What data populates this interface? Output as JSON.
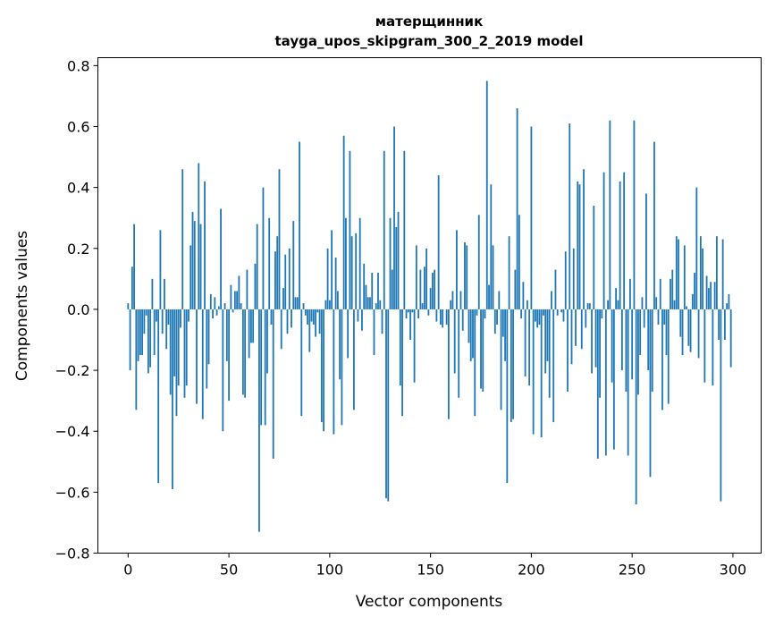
{
  "chart_data": {
    "type": "bar",
    "title": [
      "матерщинник",
      "tayga_upos_skipgram_300_2_2019 model"
    ],
    "xlabel": "Vector components",
    "ylabel": "Components values",
    "xlim": [
      -15,
      314
    ],
    "ylim": [
      -0.8,
      0.826
    ],
    "xticks": [
      0,
      50,
      100,
      150,
      200,
      250,
      300
    ],
    "xtick_labels": [
      "0",
      "50",
      "100",
      "150",
      "200",
      "250",
      "300"
    ],
    "yticks": [
      -0.8,
      -0.6,
      -0.4,
      -0.2,
      0.0,
      0.2,
      0.4,
      0.6,
      0.8
    ],
    "ytick_labels": [
      "−0.8",
      "−0.6",
      "−0.4",
      "−0.2",
      "0.0",
      "0.2",
      "0.4",
      "0.6",
      "0.8"
    ],
    "grid": false,
    "bar_color": "#1f77b4",
    "values": [
      0.02,
      -0.2,
      0.14,
      0.28,
      -0.33,
      -0.17,
      -0.15,
      -0.15,
      -0.08,
      -0.02,
      -0.21,
      -0.19,
      0.1,
      -0.15,
      -0.04,
      -0.57,
      0.26,
      -0.08,
      0.1,
      -0.13,
      -0.05,
      -0.28,
      -0.59,
      -0.22,
      -0.35,
      -0.25,
      -0.06,
      0.46,
      -0.29,
      -0.25,
      -0.04,
      0.21,
      0.32,
      0.29,
      -0.31,
      0.48,
      0.28,
      -0.36,
      0.42,
      -0.26,
      -0.18,
      0.05,
      -0.03,
      0.04,
      -0.02,
      0.01,
      0.33,
      -0.4,
      0.02,
      -0.17,
      -0.3,
      0.08,
      -0.01,
      0.06,
      0.06,
      0.11,
      0.02,
      -0.28,
      -0.29,
      0.13,
      -0.16,
      -0.11,
      -0.11,
      0.15,
      0.28,
      -0.73,
      -0.38,
      0.4,
      -0.38,
      -0.21,
      0.3,
      -0.05,
      -0.49,
      0.19,
      0.24,
      0.46,
      -0.13,
      0.07,
      0.18,
      -0.08,
      0.2,
      -0.06,
      0.29,
      0.04,
      0.04,
      0.55,
      -0.35,
      0.02,
      -0.02,
      -0.05,
      -0.14,
      -0.04,
      -0.05,
      -0.09,
      -0.01,
      -0.08,
      -0.37,
      -0.4,
      0.03,
      0.2,
      0.03,
      0.26,
      -0.41,
      0.17,
      0.06,
      -0.23,
      -0.38,
      0.57,
      0.3,
      -0.16,
      0.52,
      0.24,
      -0.33,
      0.25,
      -0.04,
      0.3,
      -0.07,
      0.15,
      0.08,
      0.04,
      0.04,
      0.12,
      -0.15,
      0.02,
      0.12,
      0.03,
      -0.08,
      0.52,
      -0.62,
      -0.63,
      0.3,
      0.13,
      0.6,
      0.27,
      0.32,
      -0.25,
      -0.35,
      0.52,
      -0.03,
      -0.01,
      -0.1,
      -0.01,
      -0.24,
      0.21,
      -0.03,
      0.13,
      0.02,
      0.14,
      0.2,
      -0.02,
      0.07,
      0.12,
      0.13,
      -0.04,
      0.44,
      -0.05,
      -0.06,
      0.0,
      -0.05,
      -0.36,
      0.03,
      0.06,
      -0.21,
      0.26,
      -0.29,
      0.06,
      -0.07,
      0.22,
      0.21,
      -0.11,
      -0.17,
      -0.16,
      -0.35,
      -0.02,
      0.31,
      -0.26,
      -0.27,
      -0.03,
      0.75,
      0.08,
      0.41,
      0.21,
      -0.08,
      -0.05,
      0.06,
      -0.33,
      -0.09,
      -0.17,
      -0.57,
      0.24,
      -0.37,
      -0.36,
      0.13,
      0.66,
      0.31,
      -0.03,
      0.09,
      -0.22,
      0.03,
      -0.25,
      0.6,
      -0.41,
      -0.04,
      -0.06,
      -0.05,
      -0.42,
      -0.02,
      -0.21,
      -0.17,
      -0.29,
      0.06,
      -0.37,
      0.13,
      -0.02,
      0.0,
      -0.01,
      -0.04,
      0.19,
      -0.27,
      0.61,
      -0.18,
      0.2,
      -0.12,
      0.42,
      0.41,
      -0.13,
      0.46,
      -0.06,
      0.02,
      0.02,
      -0.21,
      0.34,
      -0.19,
      -0.49,
      -0.29,
      -0.03,
      0.45,
      -0.48,
      0.03,
      0.62,
      -0.24,
      -0.46,
      0.07,
      0.03,
      0.42,
      -0.2,
      0.45,
      -0.27,
      -0.48,
      0.1,
      -0.23,
      0.62,
      -0.64,
      -0.28,
      -0.15,
      0.04,
      -0.06,
      0.38,
      -0.2,
      -0.55,
      -0.27,
      0.55,
      0.04,
      -0.05,
      0.1,
      -0.33,
      -0.05,
      -0.15,
      -0.31,
      0.1,
      0.13,
      0.03,
      0.24,
      0.23,
      -0.09,
      -0.15,
      0.21,
      0.01,
      -0.12,
      -0.14,
      0.05,
      0.12,
      0.4,
      -0.16,
      0.24,
      0.2,
      -0.24,
      0.11,
      0.07,
      0.09,
      -0.25,
      0.09,
      0.24,
      -0.1,
      -0.63,
      0.23,
      -0.1,
      0.02,
      0.05,
      -0.19
    ]
  }
}
